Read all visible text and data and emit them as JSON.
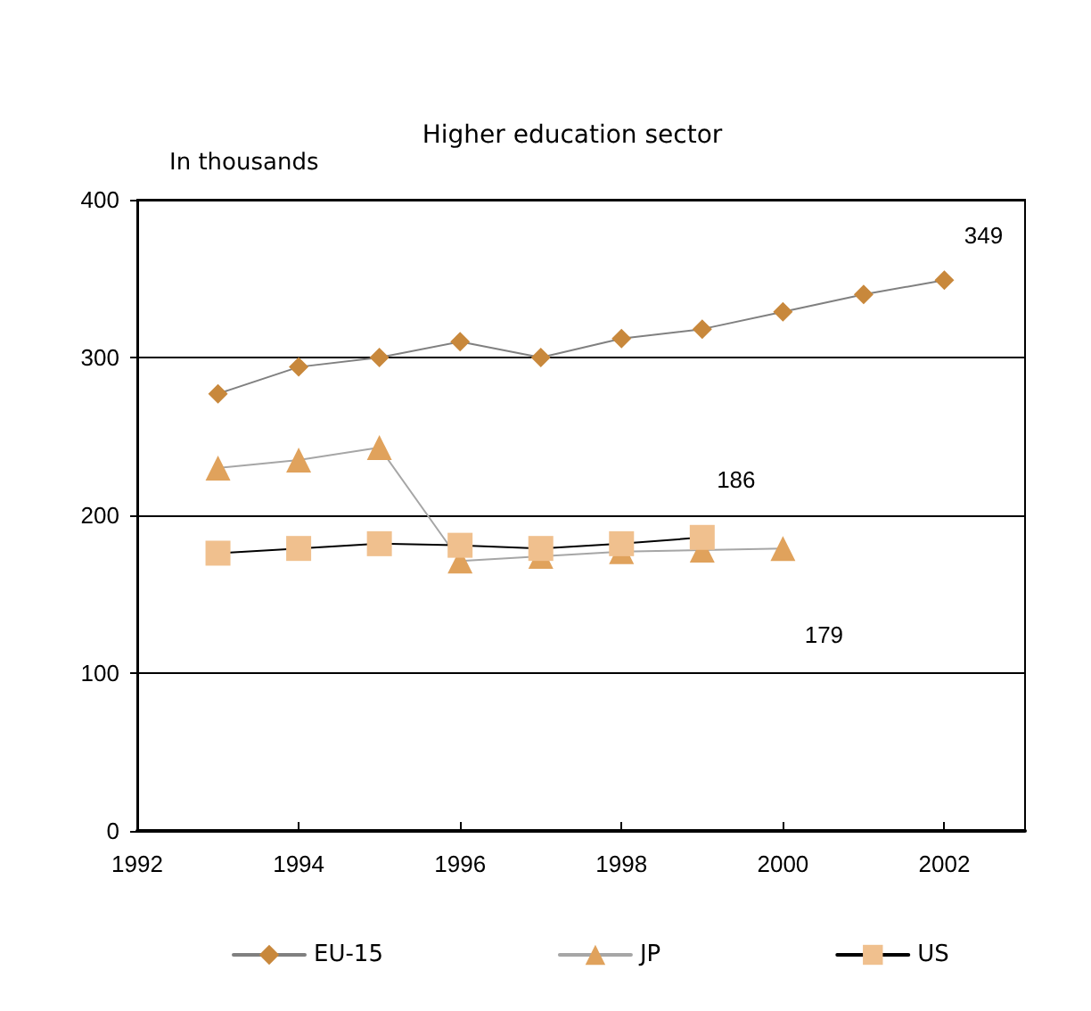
{
  "chart_data": {
    "type": "line",
    "title": "Higher education sector",
    "ylabel": "In thousands",
    "x": [
      1993,
      1994,
      1995,
      1996,
      1997,
      1998,
      1999,
      2000,
      2001,
      2002
    ],
    "series": [
      {
        "name": "EU-15",
        "color": "#c8883c",
        "marker": "diamond",
        "values": [
          277,
          294,
          300,
          310,
          300,
          312,
          318,
          329,
          340,
          349
        ],
        "value_labels": [
          null,
          null,
          null,
          null,
          null,
          null,
          null,
          null,
          null,
          "349"
        ]
      },
      {
        "name": "JP",
        "color": "#e0a25c",
        "marker": "triangle",
        "values": [
          230,
          235,
          243,
          171,
          174,
          177,
          178,
          179,
          null,
          null
        ],
        "value_labels": [
          null,
          null,
          null,
          null,
          null,
          null,
          null,
          "179",
          null,
          null
        ]
      },
      {
        "name": "US",
        "color": "#f0c08e",
        "marker": "square",
        "values": [
          176,
          179,
          182,
          181,
          179,
          182,
          186,
          null,
          null,
          null
        ],
        "value_labels": [
          null,
          null,
          null,
          null,
          null,
          null,
          "186",
          null,
          null,
          null
        ]
      }
    ],
    "xlim": [
      1992,
      2003
    ],
    "xticks": [
      1992,
      1994,
      1996,
      1998,
      2000,
      2002
    ],
    "ylim": [
      0,
      400
    ],
    "yticks": [
      0,
      100,
      200,
      300,
      400
    ],
    "grid": "y",
    "legend": "bottom",
    "line_style": "solid"
  }
}
